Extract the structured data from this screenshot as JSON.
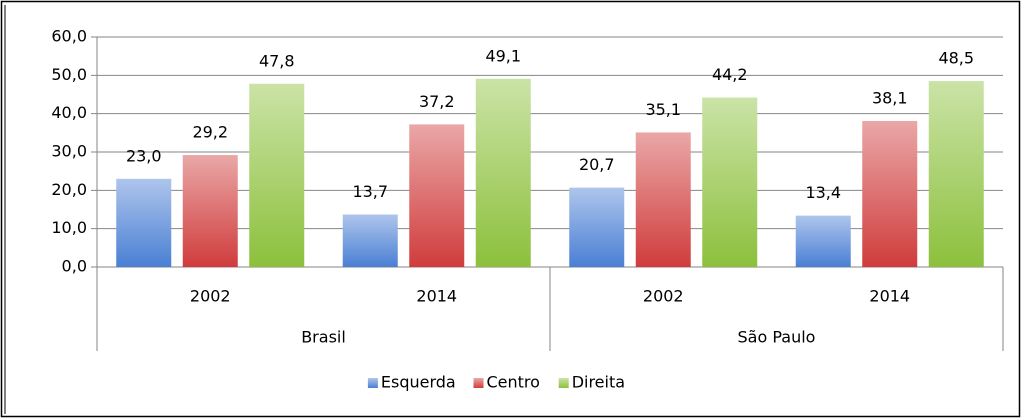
{
  "chart_data": {
    "type": "bar",
    "categories": [
      "2002",
      "2014",
      "2002",
      "2014"
    ],
    "groups": [
      "Brasil",
      "São Paulo"
    ],
    "series": [
      {
        "name": "Esquerda",
        "color": "#4a7fd4",
        "values": [
          23.0,
          13.7,
          20.7,
          13.4
        ],
        "value_labels": [
          "23,0",
          "13,7",
          "20,7",
          "13,4"
        ]
      },
      {
        "name": "Centro",
        "color": "#d03c3c",
        "values": [
          29.2,
          37.2,
          35.1,
          38.1
        ],
        "value_labels": [
          "29,2",
          "37,2",
          "35,1",
          "38,1"
        ]
      },
      {
        "name": "Direita",
        "color": "#8cc03c",
        "values": [
          47.8,
          49.1,
          44.2,
          48.5
        ],
        "value_labels": [
          "47,8",
          "49,1",
          "44,2",
          "48,5"
        ]
      }
    ],
    "ylim": [
      0,
      60
    ],
    "yticks": [
      {
        "value": 0,
        "label": "0,0"
      },
      {
        "value": 10,
        "label": "10,0"
      },
      {
        "value": 20,
        "label": "20,0"
      },
      {
        "value": 30,
        "label": "30,0"
      },
      {
        "value": 40,
        "label": "40,0"
      },
      {
        "value": 50,
        "label": "50,0"
      },
      {
        "value": 60,
        "label": "60,0"
      }
    ],
    "grid": true,
    "legend": "bottom"
  }
}
